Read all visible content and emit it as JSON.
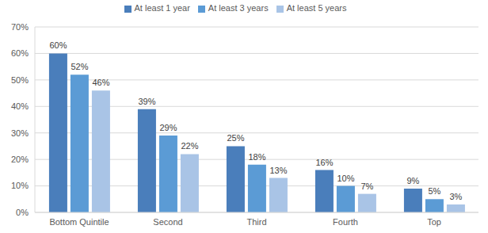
{
  "chart_data": {
    "type": "bar",
    "categories": [
      "Bottom Quintile",
      "Second",
      "Third",
      "Fourth",
      "Top"
    ],
    "series": [
      {
        "name": "At least 1 year",
        "color": "#4a7ebb",
        "values": [
          60,
          39,
          25,
          16,
          9
        ],
        "value_labels": [
          "60%",
          "39%",
          "25%",
          "16%",
          "9%"
        ]
      },
      {
        "name": "At least 3 years",
        "color": "#5b9bd5",
        "values": [
          52,
          29,
          18,
          10,
          5
        ],
        "value_labels": [
          "52%",
          "29%",
          "18%",
          "10%",
          "5%"
        ]
      },
      {
        "name": "At least 5 years",
        "color": "#a9c4e6",
        "values": [
          46,
          22,
          13,
          7,
          3
        ],
        "value_labels": [
          "46%",
          "22%",
          "13%",
          "7%",
          "3%"
        ]
      }
    ],
    "ylim": [
      0,
      70
    ],
    "yticks": [
      {
        "value": 0,
        "label": "0%"
      },
      {
        "value": 10,
        "label": "10%"
      },
      {
        "value": 20,
        "label": "20%"
      },
      {
        "value": 30,
        "label": "30%"
      },
      {
        "value": 40,
        "label": "40%"
      },
      {
        "value": 50,
        "label": "50%"
      },
      {
        "value": 60,
        "label": "60%"
      },
      {
        "value": 70,
        "label": "70%"
      }
    ],
    "grid": true,
    "legend": "top",
    "data_labels": true
  }
}
